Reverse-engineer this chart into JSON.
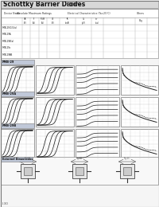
{
  "title": "Schottky Barrier Diodes",
  "subtitle": " 80V",
  "page_bg": "#f5f5f5",
  "title_box_color": "#d8d8d8",
  "title_box_border": "#aaaaaa",
  "table_bg": "#ffffff",
  "graph_bg": "#ffffff",
  "footer_text": "I-30",
  "row_labels": [
    "FMB-29",
    "FMB-29A",
    "FMB-29B"
  ],
  "row_label_bg": "#c0c8d8",
  "table_row_names": [
    "FMB-29(C/G/a)",
    "FMB-29A",
    "FMB-29B(a)",
    "FMB-29c",
    "FMB-29AB"
  ],
  "pkg_label_bg": "#c0c8d8",
  "graph_line_color": "#222222",
  "grid_color": "#cccccc",
  "border_color": "#888888"
}
